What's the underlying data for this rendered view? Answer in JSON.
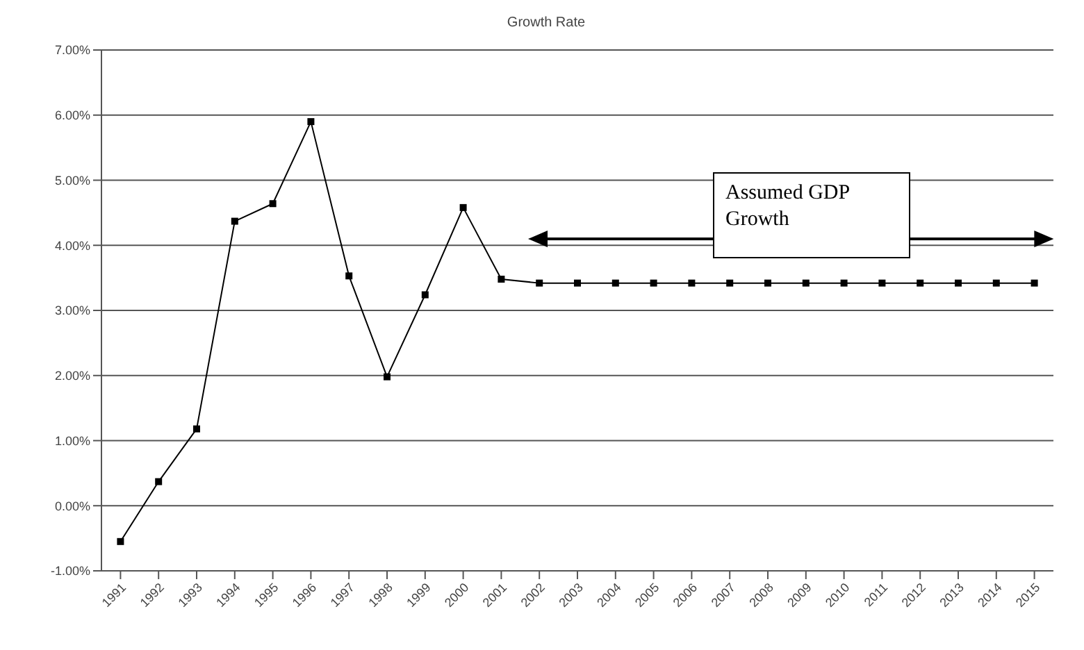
{
  "chart_data": {
    "type": "line",
    "title": "Growth Rate",
    "categories": [
      "1991",
      "1992",
      "1993",
      "1994",
      "1995",
      "1996",
      "1997",
      "1998",
      "1999",
      "2000",
      "2001",
      "2002",
      "2003",
      "2004",
      "2005",
      "2006",
      "2007",
      "2008",
      "2009",
      "2010",
      "2011",
      "2012",
      "2013",
      "2014",
      "2015"
    ],
    "series": [
      {
        "color": "#000000",
        "values": [
          -0.55,
          0.37,
          1.18,
          4.37,
          4.64,
          5.9,
          3.53,
          1.98,
          3.24,
          4.58,
          3.48,
          3.42,
          3.42,
          3.42,
          3.42,
          3.42,
          3.42,
          3.42,
          3.42,
          3.42,
          3.42,
          3.42,
          3.42,
          3.42,
          3.42
        ]
      }
    ],
    "ylim": [
      -1,
      7
    ],
    "yticks": [
      {
        "value": -1,
        "label": "-1.00%"
      },
      {
        "value": 0,
        "label": "0.00%"
      },
      {
        "value": 1,
        "label": "1.00%"
      },
      {
        "value": 2,
        "label": "2.00%"
      },
      {
        "value": 3,
        "label": "3.00%"
      },
      {
        "value": 4,
        "label": "4.00%"
      },
      {
        "value": 5,
        "label": "5.00%"
      },
      {
        "value": 6,
        "label": "6.00%"
      },
      {
        "value": 7,
        "label": "7.00%"
      }
    ],
    "grid": "y",
    "marker": "square",
    "line_style": "solid",
    "legend": false,
    "annotations": [
      "Assumed GDP Growth"
    ]
  }
}
